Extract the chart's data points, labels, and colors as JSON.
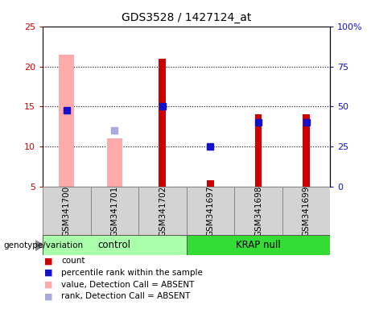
{
  "title": "GDS3528 / 1427124_at",
  "samples": [
    "GSM341700",
    "GSM341701",
    "GSM341702",
    "GSM341697",
    "GSM341698",
    "GSM341699"
  ],
  "ylim_left": [
    5,
    25
  ],
  "ylim_right": [
    0,
    100
  ],
  "yticks_left": [
    5,
    10,
    15,
    20,
    25
  ],
  "yticks_right": [
    0,
    25,
    50,
    75,
    100
  ],
  "red_bars": [
    null,
    null,
    21.0,
    5.8,
    14.0,
    14.0
  ],
  "blue_squares": [
    14.5,
    null,
    15.0,
    10.0,
    13.0,
    13.0
  ],
  "pink_bars": [
    21.5,
    11.0,
    null,
    null,
    null,
    null
  ],
  "lightblue_squares": [
    null,
    12.0,
    null,
    null,
    null,
    null
  ],
  "red_bar_color": "#cc0000",
  "blue_square_color": "#1111cc",
  "pink_bar_color": "#ffaaaa",
  "lightblue_square_color": "#aaaadd",
  "control_color": "#aaffaa",
  "krap_color": "#33dd33",
  "pink_bar_width": 0.32,
  "red_bar_width": 0.15,
  "marker_size": 6,
  "grid_dotline_y": [
    10,
    15,
    20
  ],
  "legend_items": [
    [
      "#cc0000",
      "count"
    ],
    [
      "#1111cc",
      "percentile rank within the sample"
    ],
    [
      "#ffaaaa",
      "value, Detection Call = ABSENT"
    ],
    [
      "#aaaadd",
      "rank, Detection Call = ABSENT"
    ]
  ]
}
